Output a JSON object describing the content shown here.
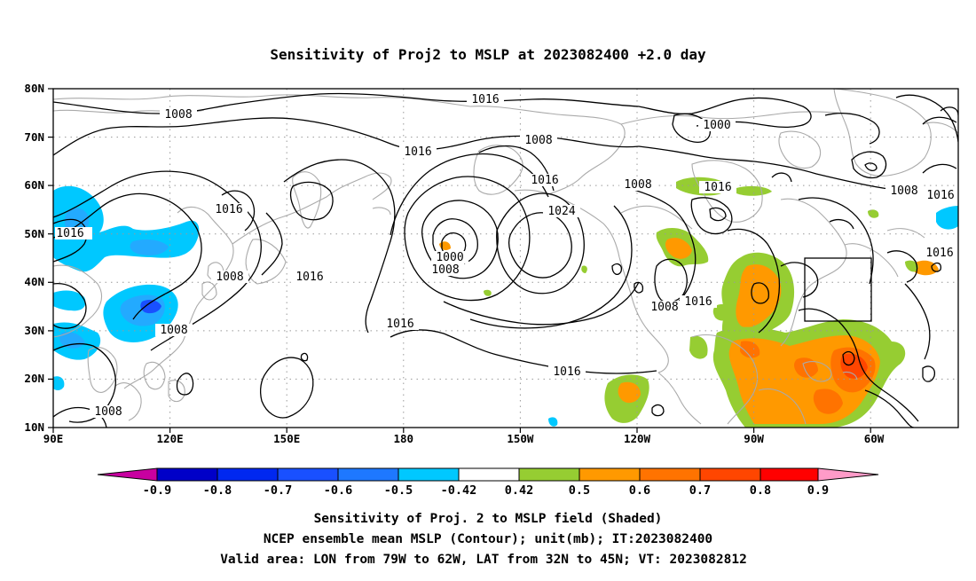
{
  "title": "Sensitivity of Proj2 to MSLP at 2023082400 +2.0 day",
  "lat_labels": [
    "80N",
    "70N",
    "60N",
    "50N",
    "40N",
    "30N",
    "20N",
    "10N"
  ],
  "lon_labels": [
    "90E",
    "120E",
    "150E",
    "180",
    "150W",
    "120W",
    "90W",
    "60W"
  ],
  "contour_labels": [
    "1016",
    "1008",
    "1000",
    "1008",
    "1016",
    "1016",
    "1008",
    "1016",
    "1016",
    "1008",
    "1016",
    "1024",
    "1000",
    "1008",
    "1016",
    "1016",
    "1008",
    "1008",
    "1016",
    "1016",
    "1008",
    "1016",
    "1016",
    "1008"
  ],
  "colorbar_labels": [
    "-0.9",
    "-0.8",
    "-0.7",
    "-0.6",
    "-0.5",
    "-0.42",
    "0.42",
    "0.5",
    "0.6",
    "0.7",
    "0.8",
    "0.9"
  ],
  "colors": {
    "neg_0_9": "#0000c8",
    "neg_0_8": "#0028f0",
    "neg_0_7": "#1950ff",
    "neg_0_6": "#1e78ff",
    "neg_0_5": "#23aaff",
    "neg_0_42": "#00c8ff",
    "neutral": "#ffffff",
    "pos_0_42": "#96cd32",
    "pos_0_5": "#ff9900",
    "pos_0_6": "#ff7300",
    "pos_0_7": "#ff4600",
    "pos_0_8": "#ff0000",
    "below_min": "#c800a0",
    "above_max": "#ff9bc8",
    "coastline": "#aaaaaa",
    "contour": "#000000",
    "grid": "#999999"
  },
  "caption": [
    "Sensitivity of Proj. 2 to MSLP field (Shaded)",
    "NCEP ensemble mean MSLP (Contour); unit(mb); IT:2023082400",
    "Valid area: LON from 79W to 62W, LAT from 32N to 45N; VT: 2023082812"
  ]
}
